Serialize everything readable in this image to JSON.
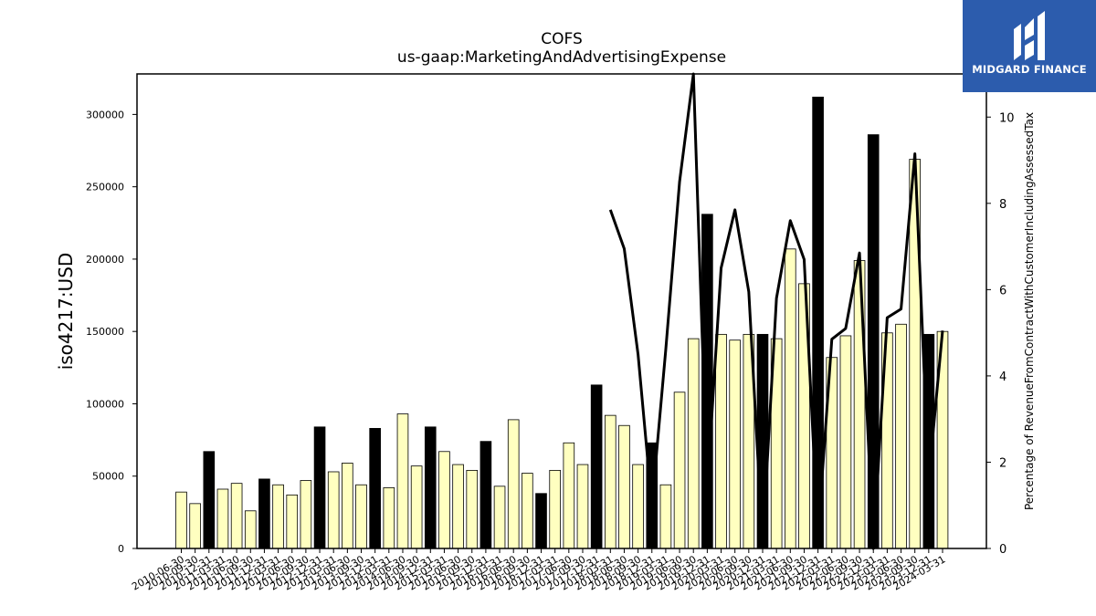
{
  "chart_data": {
    "type": "bar",
    "title": "COFS",
    "subtitle": "us-gaap:MarketingAndAdvertisingExpense",
    "ylabel": "iso4217:USD",
    "y2label": "Percentage of RevenueFromContractWithCustomerIncludingAssessedTax",
    "ylim": [
      0,
      328000
    ],
    "y2lim": [
      0,
      11.0
    ],
    "yticks": [
      "0",
      "50000",
      "100000",
      "150000",
      "200000",
      "250000",
      "300000"
    ],
    "y2ticks": [
      "0",
      "2",
      "4",
      "6",
      "8",
      "10"
    ],
    "colors": {
      "quarter": "#ffffc0",
      "annual": "#000000",
      "line": "#000000"
    },
    "categories": [
      "2010-06-30",
      "2010-09-30",
      "2010-12-31",
      "2011-03-31",
      "2011-06-30",
      "2011-09-30",
      "2011-12-31",
      "2012-03-31",
      "2012-06-30",
      "2012-09-30",
      "2012-12-31",
      "2013-03-31",
      "2013-06-30",
      "2013-09-30",
      "2013-12-31",
      "2014-03-31",
      "2014-06-30",
      "2014-09-30",
      "2014-12-31",
      "2015-03-31",
      "2015-06-30",
      "2015-09-30",
      "2015-12-31",
      "2016-03-31",
      "2016-06-30",
      "2016-09-30",
      "2016-12-31",
      "2017-03-31",
      "2017-06-30",
      "2017-09-30",
      "2017-12-31",
      "2018-03-31",
      "2018-06-30",
      "2018-09-30",
      "2018-12-31",
      "2019-03-31",
      "2019-06-30",
      "2019-09-30",
      "2019-12-31",
      "2020-03-31",
      "2020-06-30",
      "2020-09-30",
      "2020-12-31",
      "2021-03-31",
      "2021-06-30",
      "2021-09-30",
      "2021-12-31",
      "2022-03-31",
      "2022-06-30",
      "2022-09-30",
      "2022-12-31",
      "2023-03-31",
      "2023-06-30",
      "2023-09-30",
      "2023-12-31",
      "2024-03-31"
    ],
    "x_tick_labels": [
      "2010-06-30",
      "2010-09-30",
      "2010-12-31",
      "2011-03-31",
      "2011-06-30",
      "2011-09-30",
      "2011-12-31",
      "2012-03-31",
      "2012-06-30",
      "2012-09-30",
      "2012-12-31",
      "2013-03-31",
      "2013-06-30",
      "2013-09-30",
      "2013-12-31",
      "2014-03-31",
      "2014-06-30",
      "2014-09-30",
      "2014-12-31",
      "2015-03-31",
      "2015-06-30",
      "2015-09-30",
      "2015-12-31",
      "2016-03-31",
      "2016-06-30",
      "2016-09-30",
      "2016-12-31",
      "2017-03-31",
      "2017-06-30",
      "2017-09-30",
      "2017-12-31",
      "2018-03-31",
      "2018-06-30",
      "2018-09-30",
      "2018-12-31",
      "2019-03-31",
      "2019-06-30",
      "2019-09-30",
      "2019-12-31",
      "2020-03-31",
      "2020-06-30",
      "2020-09-30",
      "2020-12-31",
      "2021-03-31",
      "2021-06-30",
      "2021-09-30",
      "2021-12-31",
      "2022-03-31",
      "2022-06-30",
      "2022-09-30",
      "2022-12-31",
      "2023-03-31",
      "2023-06-30",
      "2023-09-30",
      "2023-12-31",
      "2024-03-31"
    ],
    "bar_values": [
      39000,
      31000,
      67000,
      41000,
      45000,
      26000,
      48000,
      44000,
      37000,
      47000,
      84000,
      53000,
      59000,
      44000,
      83000,
      42000,
      93000,
      57000,
      84000,
      67000,
      58000,
      54000,
      74000,
      43000,
      89000,
      52000,
      38000,
      54000,
      73000,
      58000,
      113000,
      92000,
      85000,
      58000,
      73000,
      44000,
      108000,
      145000,
      231000,
      148000,
      144000,
      148000,
      148000,
      145000,
      207000,
      183000,
      312000,
      132000,
      147000,
      199000,
      286000,
      149000,
      155000,
      269000,
      148000,
      150000
    ],
    "bar_kind": [
      "q",
      "q",
      "a",
      "q",
      "q",
      "q",
      "a",
      "q",
      "q",
      "q",
      "a",
      "q",
      "q",
      "q",
      "a",
      "q",
      "q",
      "q",
      "a",
      "q",
      "q",
      "q",
      "a",
      "q",
      "q",
      "q",
      "a",
      "q",
      "q",
      "q",
      "a",
      "q",
      "q",
      "q",
      "a",
      "q",
      "q",
      "q",
      "a",
      "q",
      "q",
      "q",
      "a",
      "q",
      "q",
      "q",
      "a",
      "q",
      "q",
      "q",
      "a",
      "q",
      "q",
      "q",
      "a",
      "q"
    ],
    "line_values": [
      null,
      null,
      null,
      null,
      null,
      null,
      null,
      null,
      null,
      null,
      null,
      null,
      null,
      null,
      null,
      null,
      null,
      null,
      null,
      null,
      null,
      null,
      null,
      null,
      null,
      null,
      null,
      null,
      null,
      null,
      null,
      7.85,
      6.95,
      4.5,
      1.0,
      4.6,
      8.5,
      11.1,
      1.4,
      6.5,
      7.85,
      5.95,
      0.1,
      5.8,
      7.6,
      6.7,
      0.3,
      4.85,
      5.1,
      6.85,
      0.0,
      5.35,
      5.55,
      9.15,
      1.6,
      5.05
    ]
  },
  "logo": {
    "text": "MIDGARD FINANCE",
    "icon": "midgard-logo-mark"
  }
}
